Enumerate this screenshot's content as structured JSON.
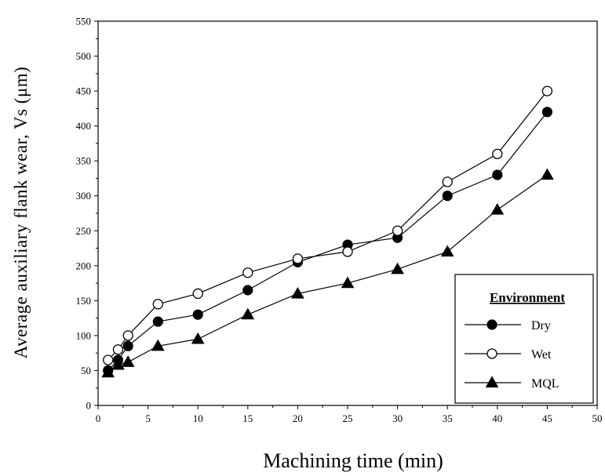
{
  "chart_data": {
    "type": "line",
    "xlabel": "Machining time (min)",
    "ylabel": "Average auxiliary flank wear, Vs (μm)",
    "xlim": [
      0,
      50
    ],
    "ylim": [
      0,
      550
    ],
    "xticks": [
      "0",
      "5",
      "10",
      "15",
      "20",
      "25",
      "30",
      "35",
      "40",
      "45",
      "50"
    ],
    "yticks": [
      "0",
      "50",
      "100",
      "150",
      "200",
      "250",
      "300",
      "350",
      "400",
      "450",
      "500",
      "550"
    ],
    "grid": false,
    "legend": {
      "title": "Environment",
      "placement": "bottom-right"
    },
    "series": [
      {
        "name": "Dry",
        "marker": "filled-circle",
        "x": [
          1,
          2,
          3,
          6,
          10,
          15,
          20,
          25,
          30,
          35,
          40,
          45
        ],
        "y": [
          50,
          65,
          85,
          120,
          130,
          165,
          205,
          230,
          240,
          300,
          330,
          420
        ]
      },
      {
        "name": "Wet",
        "marker": "open-circle",
        "x": [
          1,
          2,
          3,
          6,
          10,
          15,
          20,
          25,
          30,
          35,
          40,
          45
        ],
        "y": [
          65,
          80,
          100,
          145,
          160,
          190,
          210,
          220,
          250,
          320,
          360,
          450
        ]
      },
      {
        "name": "MQL",
        "marker": "filled-triangle",
        "x": [
          1,
          2,
          3,
          6,
          10,
          15,
          20,
          25,
          30,
          35,
          40,
          45
        ],
        "y": [
          47,
          58,
          62,
          85,
          95,
          130,
          160,
          175,
          195,
          220,
          280,
          330
        ]
      }
    ]
  }
}
